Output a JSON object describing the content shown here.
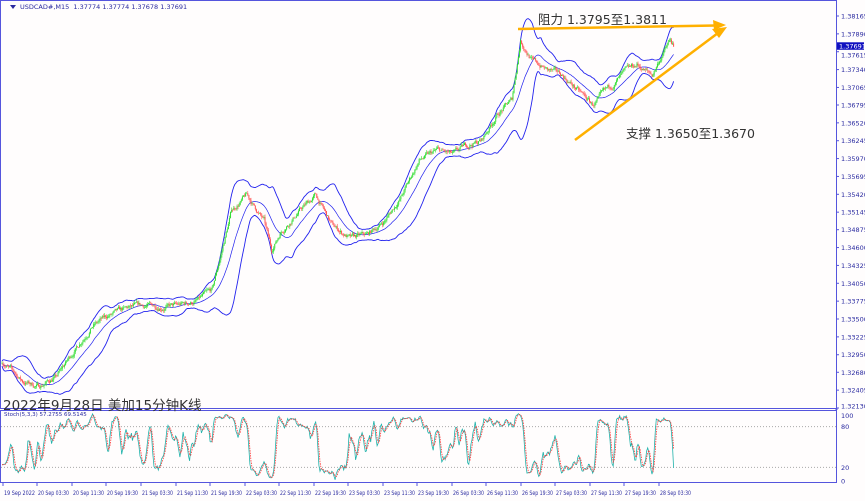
{
  "header": {
    "symbol_label": "USDCAD#,M15",
    "ohlc": "1.37774 1.37774 1.37678 1.37691"
  },
  "annotations": {
    "resistance": "阻力 1.3795至1.3811",
    "support": "支撑 1.3650至1.3670",
    "caption": "2022年9月28日 美加15分钟K线"
  },
  "indicator": {
    "label": "Stoch(5,3,3) 57.2755 69.5145",
    "levels": [
      "100",
      "80",
      "20",
      "0"
    ]
  },
  "colors": {
    "bull": "#33dd33",
    "bear": "#ff5555",
    "bands": "#2222ee",
    "axis": "#5555dd",
    "trendlines": "#ffb000",
    "stoch_main": "#20b2aa",
    "stoch_signal": "#ff3333",
    "current_price_bg": "#1010c0"
  },
  "chart_data": {
    "type": "candlestick",
    "timeframe": "M15",
    "current_price": "1.37691",
    "y_ticks": [
      "1.38165",
      "1.37890",
      "1.37615",
      "1.37340",
      "1.37065",
      "1.36795",
      "1.36520",
      "1.36245",
      "1.35970",
      "1.35695",
      "1.35420",
      "1.35145",
      "1.34875",
      "1.34600",
      "1.34325",
      "1.34050",
      "1.33775",
      "1.33500",
      "1.33225",
      "1.32950",
      "1.32680",
      "1.32405",
      "1.32130"
    ],
    "ylim": [
      1.3213,
      1.3845
    ],
    "x_ticks": [
      "19 Sep 2022",
      "20 Sep 03:30",
      "20 Sep 11:30",
      "20 Sep 19:30",
      "21 Sep 03:30",
      "21 Sep 11:30",
      "21 Sep 19:30",
      "22 Sep 03:30",
      "22 Sep 11:30",
      "22 Sep 19:30",
      "23 Sep 03:30",
      "23 Sep 11:30",
      "23 Sep 19:30",
      "26 Sep 03:30",
      "26 Sep 11:30",
      "26 Sep 19:30",
      "27 Sep 03:30",
      "27 Sep 11:30",
      "27 Sep 19:30",
      "28 Sep 03:30"
    ],
    "approx_close_path_bar_price": [
      [
        0,
        1.3285
      ],
      [
        19,
        1.3254
      ],
      [
        34,
        1.3246
      ],
      [
        51,
        1.3262
      ],
      [
        67,
        1.3301
      ],
      [
        83,
        1.3339
      ],
      [
        98,
        1.3354
      ],
      [
        116,
        1.3365
      ],
      [
        131,
        1.337
      ],
      [
        148,
        1.337
      ],
      [
        163,
        1.337
      ],
      [
        181,
        1.3378
      ],
      [
        195,
        1.3393
      ],
      [
        204,
        1.3455
      ],
      [
        213,
        1.3517
      ],
      [
        227,
        1.354
      ],
      [
        243,
        1.3501
      ],
      [
        250,
        1.3455
      ],
      [
        259,
        1.3486
      ],
      [
        276,
        1.3517
      ],
      [
        291,
        1.354
      ],
      [
        306,
        1.3494
      ],
      [
        323,
        1.3474
      ],
      [
        339,
        1.3479
      ],
      [
        355,
        1.3501
      ],
      [
        371,
        1.354
      ],
      [
        387,
        1.3594
      ],
      [
        404,
        1.3609
      ],
      [
        419,
        1.3602
      ],
      [
        431,
        1.3617
      ],
      [
        445,
        1.3625
      ],
      [
        459,
        1.3664
      ],
      [
        473,
        1.3687
      ],
      [
        481,
        1.3779
      ],
      [
        492,
        1.3748
      ],
      [
        506,
        1.3733
      ],
      [
        520,
        1.3725
      ],
      [
        534,
        1.3702
      ],
      [
        548,
        1.3679
      ],
      [
        562,
        1.3702
      ],
      [
        575,
        1.3725
      ],
      [
        589,
        1.3741
      ],
      [
        603,
        1.3725
      ],
      [
        612,
        1.3756
      ],
      [
        620,
        1.3779
      ],
      [
        623,
        1.3769
      ]
    ],
    "indicators": [
      "Bollinger Bands",
      "Moving Average",
      "Stochastic(5,3,3)"
    ],
    "trendlines": {
      "resistance": [
        1.3795,
        1.3811
      ],
      "support": [
        1.365,
        1.367
      ]
    }
  }
}
